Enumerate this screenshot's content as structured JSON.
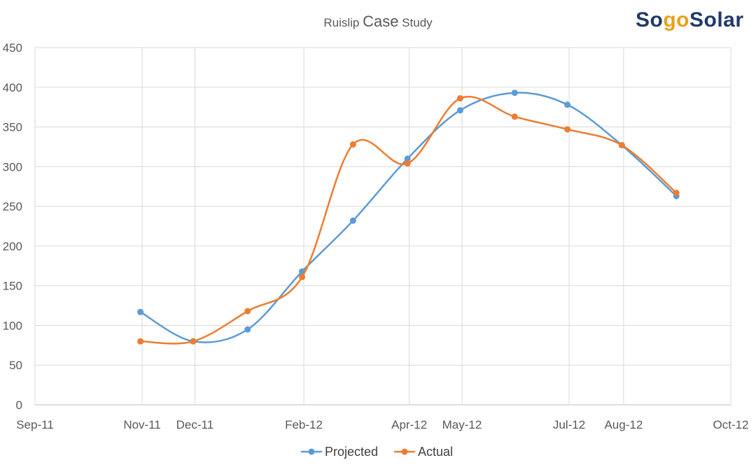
{
  "chart_data": {
    "type": "line",
    "title_parts": [
      "Ruislip ",
      "Case",
      " Study"
    ],
    "xlabel": "",
    "ylabel": "",
    "ylim": [
      0,
      450
    ],
    "yticks": [
      0,
      50,
      100,
      150,
      200,
      250,
      300,
      350,
      400,
      450
    ],
    "xlim": [
      "2011-09-01",
      "2012-10-01"
    ],
    "xtick_labels": [
      "Sep-11",
      "Nov-11",
      "Dec-11",
      "Feb-12",
      "Apr-12",
      "May-12",
      "Jul-12",
      "Aug-12",
      "Oct-12"
    ],
    "xtick_dates": [
      "2011-09-01",
      "2011-11-01",
      "2011-12-01",
      "2012-02-01",
      "2012-04-01",
      "2012-05-01",
      "2012-07-01",
      "2012-08-01",
      "2012-10-01"
    ],
    "grid": true,
    "legend_position": "bottom",
    "series": [
      {
        "name": "Projected",
        "color": "#5b9bd5",
        "points": [
          {
            "x": "2011-10-31",
            "y": 117
          },
          {
            "x": "2011-11-30",
            "y": 80
          },
          {
            "x": "2011-12-31",
            "y": 95
          },
          {
            "x": "2012-01-31",
            "y": 168
          },
          {
            "x": "2012-02-29",
            "y": 232
          },
          {
            "x": "2012-03-31",
            "y": 310
          },
          {
            "x": "2012-04-30",
            "y": 371
          },
          {
            "x": "2012-05-31",
            "y": 393
          },
          {
            "x": "2012-06-30",
            "y": 378
          },
          {
            "x": "2012-07-31",
            "y": 327
          },
          {
            "x": "2012-08-31",
            "y": 263
          }
        ]
      },
      {
        "name": "Actual",
        "color": "#ed7d31",
        "points": [
          {
            "x": "2011-10-31",
            "y": 80
          },
          {
            "x": "2011-11-30",
            "y": 80
          },
          {
            "x": "2011-12-31",
            "y": 118
          },
          {
            "x": "2012-01-31",
            "y": 161
          },
          {
            "x": "2012-02-29",
            "y": 328
          },
          {
            "x": "2012-03-31",
            "y": 304
          },
          {
            "x": "2012-04-30",
            "y": 386
          },
          {
            "x": "2012-05-31",
            "y": 363
          },
          {
            "x": "2012-06-30",
            "y": 347
          },
          {
            "x": "2012-07-31",
            "y": 327
          },
          {
            "x": "2012-08-31",
            "y": 267
          }
        ]
      }
    ]
  },
  "logo": {
    "parts": [
      "So",
      "go",
      "Solar"
    ],
    "colors": [
      "#1f3a68",
      "#e8a11b",
      "#1f3a68"
    ]
  },
  "colors": {
    "grid": "#d9d9d9",
    "axis": "#bfbfbf",
    "text": "#595959"
  }
}
